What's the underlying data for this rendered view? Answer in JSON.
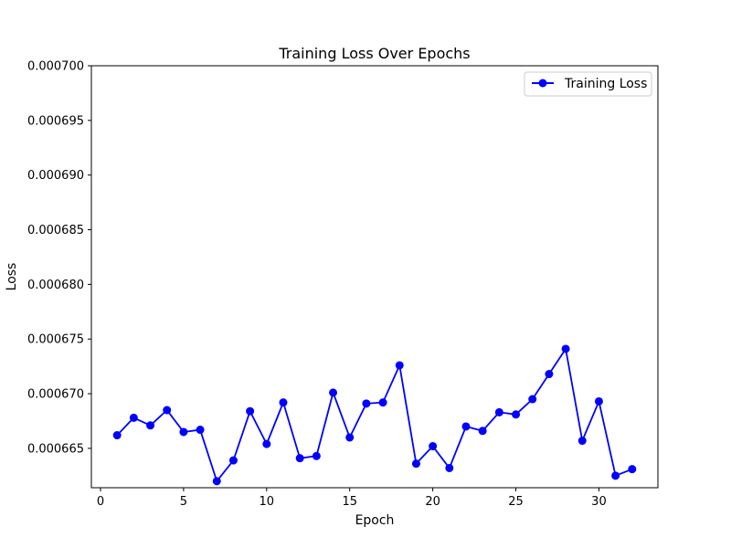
{
  "chart_data": {
    "type": "line",
    "title": "Training Loss Over Epochs",
    "xlabel": "Epoch",
    "ylabel": "Loss",
    "xlim": [
      -0.55,
      33.55
    ],
    "ylim": [
      0.0006614,
      0.0007
    ],
    "x_ticks": [
      0,
      5,
      10,
      15,
      20,
      25,
      30
    ],
    "y_ticks": [
      0.000665,
      0.00067,
      0.000675,
      0.00068,
      0.000685,
      0.00069,
      0.000695,
      0.0007
    ],
    "y_tick_labels": [
      "0.000665",
      "0.000670",
      "0.000675",
      "0.000680",
      "0.000685",
      "0.000690",
      "0.000695",
      "0.000700"
    ],
    "grid": false,
    "legend": "top-right",
    "series": [
      {
        "name": "Training Loss",
        "color": "#0000ff",
        "marker": "circle",
        "x": [
          1,
          2,
          3,
          4,
          5,
          6,
          7,
          8,
          9,
          10,
          11,
          12,
          13,
          14,
          15,
          16,
          17,
          18,
          19,
          20,
          21,
          22,
          23,
          24,
          25,
          26,
          27,
          28,
          29,
          30,
          31,
          32
        ],
        "y": [
          0.0006662,
          0.0006678,
          0.0006671,
          0.0006685,
          0.0006665,
          0.0006667,
          0.000662,
          0.0006639,
          0.0006684,
          0.0006654,
          0.0006692,
          0.0006641,
          0.0006643,
          0.0006701,
          0.000666,
          0.0006691,
          0.0006692,
          0.0006726,
          0.0006636,
          0.0006652,
          0.0006632,
          0.000667,
          0.0006666,
          0.0006683,
          0.0006681,
          0.0006695,
          0.0006718,
          0.0006741,
          0.0006657,
          0.0006693,
          0.0006625,
          0.0006631
        ]
      }
    ]
  }
}
